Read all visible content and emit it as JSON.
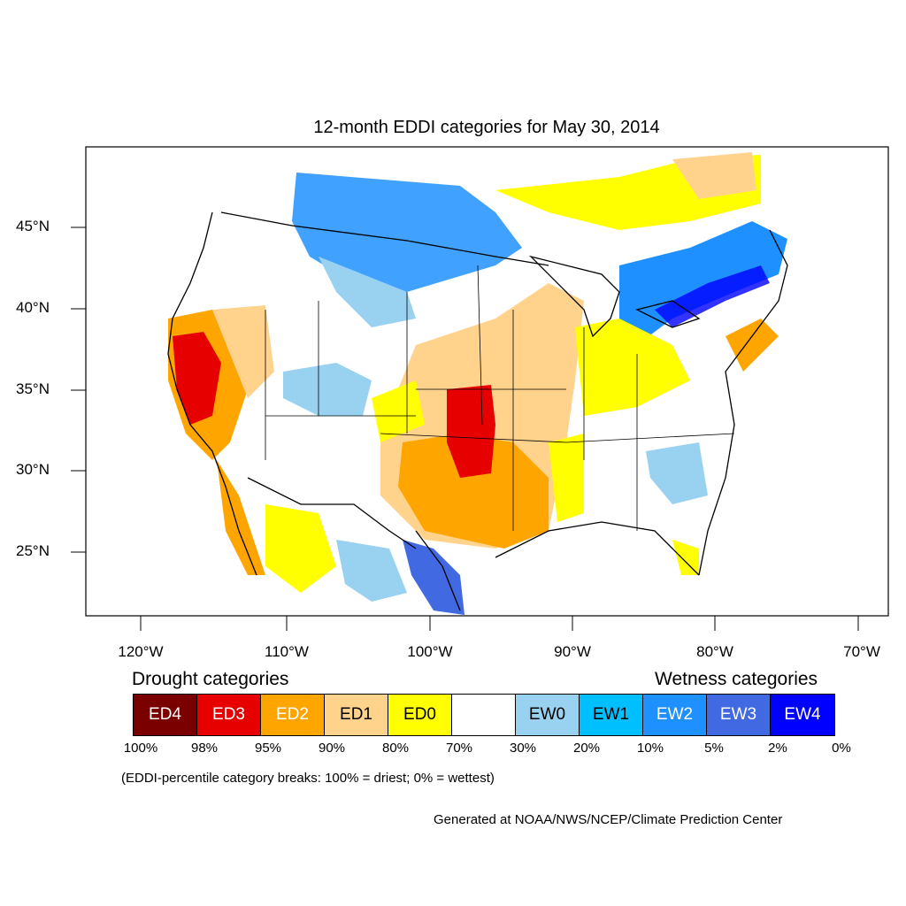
{
  "title": "12-month EDDI categories for May 30, 2014",
  "lat_labels": [
    "45°N",
    "40°N",
    "35°N",
    "30°N",
    "25°N"
  ],
  "lon_labels": [
    "120°W",
    "110°W",
    "100°W",
    "90°W",
    "80°W",
    "70°W"
  ],
  "legend": {
    "drought_heading": "Drought categories",
    "wetness_heading": "Wetness categories",
    "categories": [
      {
        "label": "ED4",
        "color": "#7a0000",
        "text_color": "#ffffff"
      },
      {
        "label": "ED3",
        "color": "#e60000",
        "text_color": "#ffffff"
      },
      {
        "label": "ED2",
        "color": "#ffa500",
        "text_color": "#ffffff"
      },
      {
        "label": "ED1",
        "color": "#ffd38c",
        "text_color": "#000000"
      },
      {
        "label": "ED0",
        "color": "#ffff00",
        "text_color": "#000000"
      },
      {
        "label": "",
        "color": "#ffffff",
        "text_color": "#000000"
      },
      {
        "label": "EW0",
        "color": "#99d1f0",
        "text_color": "#000000"
      },
      {
        "label": "EW1",
        "color": "#00bfff",
        "text_color": "#000000"
      },
      {
        "label": "EW2",
        "color": "#1e90ff",
        "text_color": "#ffffff"
      },
      {
        "label": "EW3",
        "color": "#4169e1",
        "text_color": "#ffffff"
      },
      {
        "label": "EW4",
        "color": "#0000ff",
        "text_color": "#ffffff"
      }
    ],
    "breaks": [
      "100%",
      "98%",
      "95%",
      "90%",
      "80%",
      "70%",
      "30%",
      "20%",
      "10%",
      "5%",
      "2%",
      "0%"
    ]
  },
  "note": "(EDDI-percentile category breaks: 100% = driest; 0% = wettest)",
  "credit": "Generated at NOAA/NWS/NCEP/Climate Prediction Center"
}
